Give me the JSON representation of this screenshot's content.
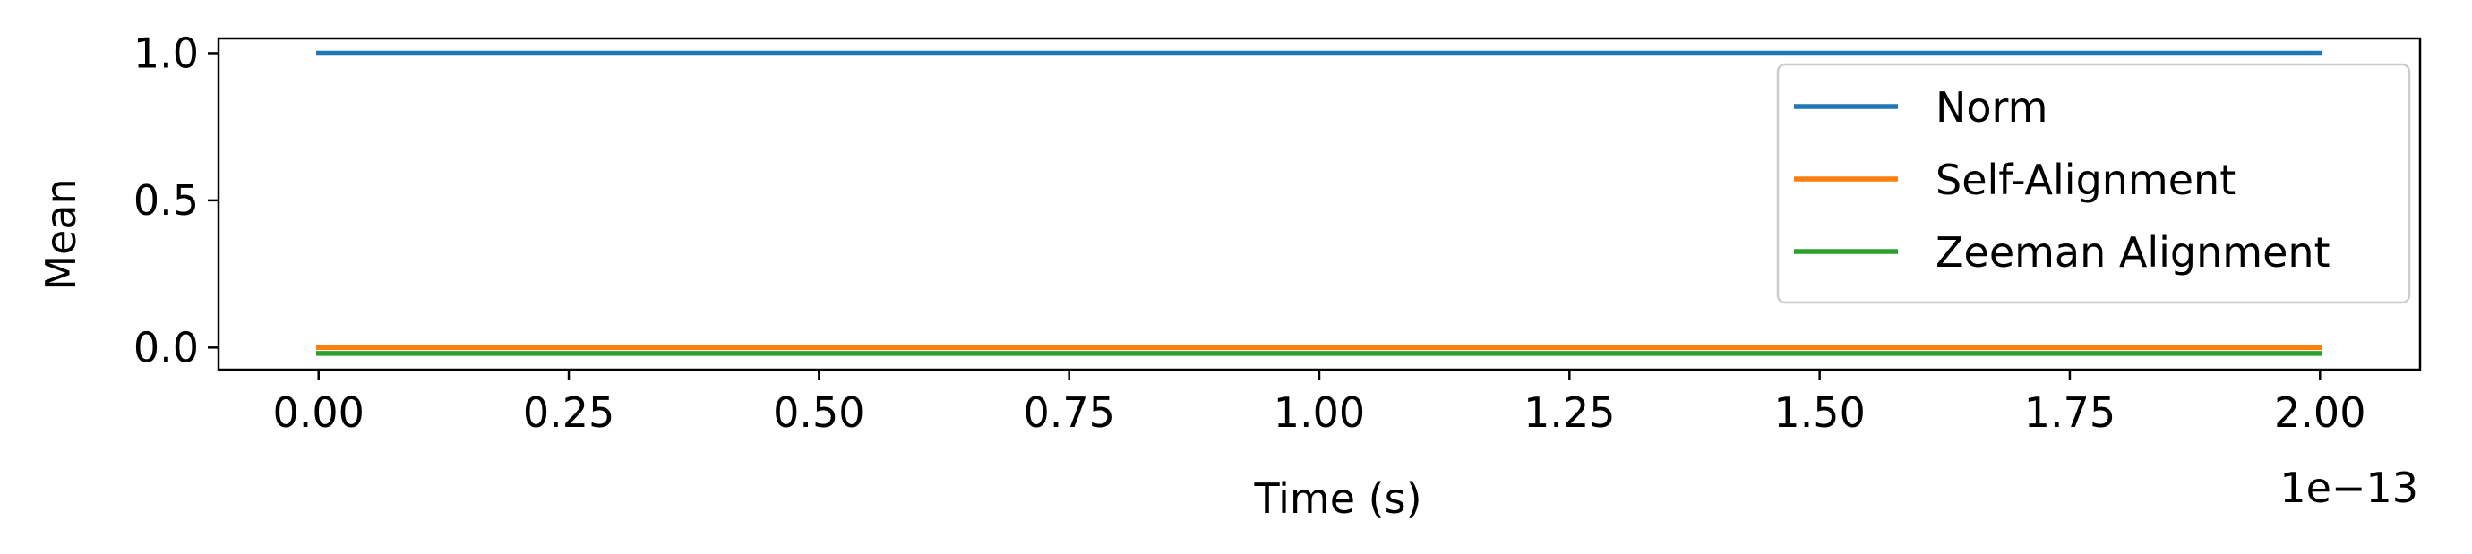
{
  "chart_data": {
    "type": "line",
    "xlabel": "Time (s)",
    "ylabel": "Mean",
    "x_offset_label": "1e−13",
    "xlim": [
      -0.1,
      2.1
    ],
    "ylim": [
      -0.075,
      1.05
    ],
    "x_ticks": [
      0.0,
      0.25,
      0.5,
      0.75,
      1.0,
      1.25,
      1.5,
      1.75,
      2.0
    ],
    "x_tick_labels": [
      "0.00",
      "0.25",
      "0.50",
      "0.75",
      "1.00",
      "1.25",
      "1.50",
      "1.75",
      "2.00"
    ],
    "y_ticks": [
      0.0,
      0.5,
      1.0
    ],
    "y_tick_labels": [
      "0.0",
      "0.5",
      "1.0"
    ],
    "grid": false,
    "legend_position": "upper right",
    "series": [
      {
        "name": "Norm",
        "color": "#1f77b4",
        "x": [
          0.0,
          2.0
        ],
        "y": [
          1.0,
          1.0
        ]
      },
      {
        "name": "Self-Alignment",
        "color": "#ff7f0e",
        "x": [
          0.0,
          2.0
        ],
        "y": [
          0.0,
          0.0
        ]
      },
      {
        "name": "Zeeman Alignment",
        "color": "#2ca02c",
        "x": [
          0.0,
          2.0
        ],
        "y": [
          -0.02,
          -0.02
        ]
      }
    ]
  }
}
